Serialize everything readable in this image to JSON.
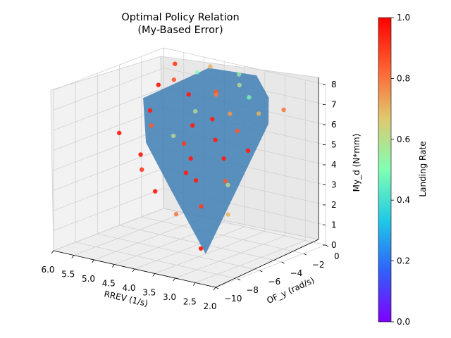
{
  "chart_data": {
    "type": "scatter3d",
    "title": [
      "Optimal Policy Relation",
      "(My-Based Error)"
    ],
    "xlabel": "RREV (1/s)",
    "ylabel": "OF_y (rad/s)",
    "zlabel": "My_d (N*mm)",
    "x_ticks": [
      "6.0",
      "5.5",
      "5.0",
      "4.5",
      "4.0",
      "3.5",
      "3.0",
      "2.5",
      "2.0"
    ],
    "y_ticks": [
      "−10",
      "−8",
      "−6",
      "−4",
      "−2",
      "0"
    ],
    "z_ticks": [
      "0",
      "1",
      "2",
      "3",
      "4",
      "5",
      "6",
      "7",
      "8"
    ],
    "xlim": [
      2.0,
      6.0
    ],
    "ylim": [
      -10,
      0
    ],
    "zlim": [
      0,
      8
    ],
    "colorbar": {
      "label": "Landing Rate",
      "range": [
        0.0,
        1.0
      ],
      "ticks": [
        "0.0",
        "0.2",
        "0.4",
        "0.6",
        "0.8",
        "1.0"
      ],
      "colormap": [
        "#8000ff",
        "#3062f9",
        "#1ec8e6",
        "#80ffb4",
        "#e0c86e",
        "#ff6232",
        "#ff0000"
      ]
    },
    "surface_color": "#3f7fb5",
    "points_xyz_rate": [
      [
        5.8,
        -1.2,
        6.5,
        0.95
      ],
      [
        5.5,
        -0.8,
        7.6,
        0.9
      ],
      [
        5.2,
        -2.0,
        7.2,
        0.85
      ],
      [
        4.9,
        -1.0,
        7.5,
        0.5
      ],
      [
        4.7,
        -2.5,
        6.8,
        0.95
      ],
      [
        4.6,
        -0.9,
        7.9,
        0.7
      ],
      [
        4.4,
        -3.0,
        6.2,
        0.6
      ],
      [
        4.3,
        -1.5,
        6.9,
        0.85
      ],
      [
        4.2,
        -4.0,
        5.8,
        0.95
      ],
      [
        4.1,
        -2.2,
        7.0,
        0.8
      ],
      [
        4.0,
        -5.5,
        5.3,
        0.9
      ],
      [
        3.9,
        -3.3,
        6.1,
        0.95
      ],
      [
        3.8,
        -1.2,
        7.4,
        0.6
      ],
      [
        3.7,
        -6.0,
        4.8,
        0.95
      ],
      [
        3.6,
        -2.8,
        6.4,
        0.75
      ],
      [
        3.5,
        -4.5,
        5.5,
        0.95
      ],
      [
        3.4,
        -1.8,
        7.1,
        0.5
      ],
      [
        3.3,
        -7.0,
        4.1,
        0.95
      ],
      [
        3.2,
        -3.6,
        5.9,
        0.85
      ],
      [
        3.1,
        -5.2,
        4.9,
        0.95
      ],
      [
        3.0,
        -2.4,
        6.6,
        0.7
      ],
      [
        2.9,
        -8.0,
        3.2,
        0.9
      ],
      [
        2.8,
        -4.1,
        5.2,
        0.95
      ],
      [
        2.7,
        -6.3,
        4.0,
        0.6
      ],
      [
        2.6,
        -1.6,
        6.8,
        0.8
      ],
      [
        2.5,
        -9.5,
        1.6,
        0.95
      ],
      [
        2.4,
        -7.4,
        2.9,
        0.7
      ],
      [
        4.8,
        -6.5,
        4.6,
        0.95
      ],
      [
        5.0,
        -4.8,
        5.6,
        0.85
      ],
      [
        5.3,
        -3.8,
        6.0,
        0.95
      ],
      [
        4.5,
        -7.5,
        4.2,
        0.9
      ],
      [
        3.9,
        -8.5,
        3.6,
        0.95
      ],
      [
        4.4,
        -5.0,
        5.4,
        0.6
      ],
      [
        5.6,
        -5.5,
        5.1,
        0.95
      ],
      [
        3.3,
        -8.8,
        2.8,
        0.8
      ],
      [
        4.0,
        -0.5,
        7.7,
        0.55
      ],
      [
        3.6,
        -6.8,
        4.3,
        0.95
      ],
      [
        2.9,
        -5.8,
        4.0,
        0.85
      ]
    ]
  }
}
